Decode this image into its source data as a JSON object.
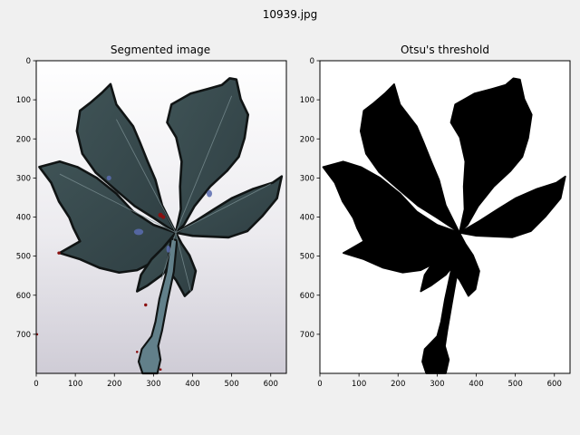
{
  "figure": {
    "suptitle": "10939.jpg",
    "background_color": "#f0f0f0"
  },
  "chart_data": [
    {
      "type": "image",
      "title": "Segmented image",
      "xlabel": "",
      "ylabel": "",
      "xlim": [
        0,
        640
      ],
      "ylim": [
        800,
        0
      ],
      "xticks": [
        0,
        100,
        200,
        300,
        400,
        500,
        600
      ],
      "yticks": [
        0,
        100,
        200,
        300,
        400,
        500,
        600,
        700
      ],
      "grid": false,
      "content": "leaf-photo",
      "colors": {
        "background_light": "#f6f5f6",
        "background_shadow": "#c9c6d0",
        "leaf_fill": "#3a4d50",
        "leaf_edge": "#101414",
        "vein": "#7b8f93",
        "stem": "#6f8f95",
        "spot": "#5a6cb0",
        "mark_red": "#8a1010"
      }
    },
    {
      "type": "image",
      "title": "Otsu's threshold",
      "xlabel": "",
      "ylabel": "",
      "xlim": [
        0,
        640
      ],
      "ylim": [
        800,
        0
      ],
      "xticks": [
        0,
        100,
        200,
        300,
        400,
        500,
        600
      ],
      "yticks": [
        0,
        100,
        200,
        300,
        400,
        500,
        600,
        700
      ],
      "grid": false,
      "content": "binary-mask",
      "colors": {
        "background": "#ffffff",
        "foreground": "#000000"
      }
    }
  ]
}
